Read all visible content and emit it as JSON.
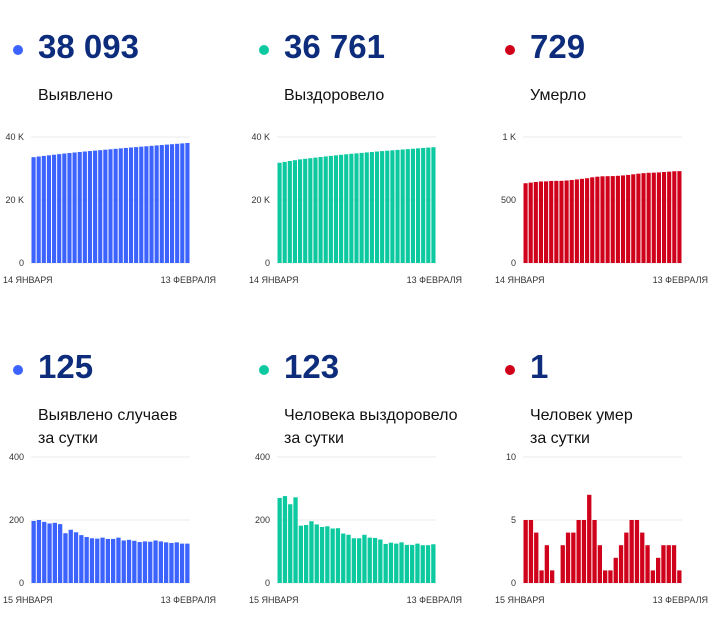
{
  "colors": {
    "blue": "#3d63ff",
    "teal": "#0cc9a0",
    "red": "#d0021b"
  },
  "stats": [
    {
      "value": "38 093",
      "label1": "Выявлено",
      "label2": "",
      "color": "#3d63ff"
    },
    {
      "value": "36 761",
      "label1": "Выздоровело",
      "label2": "",
      "color": "#0cc9a0"
    },
    {
      "value": "729",
      "label1": "Умерло",
      "label2": "",
      "color": "#d0021b"
    },
    {
      "value": "125",
      "label1": "Выявлено случаев",
      "label2": "за сутки",
      "color": "#3d63ff"
    },
    {
      "value": "123",
      "label1": "Человека выздоровело",
      "label2": "за сутки",
      "color": "#0cc9a0"
    },
    {
      "value": "1",
      "label1": "Человек умер",
      "label2": "за сутки",
      "color": "#d0021b"
    }
  ],
  "chart_data": [
    {
      "type": "bar",
      "color": "#3d63ff",
      "ylim": [
        0,
        40000
      ],
      "yticks": [
        {
          "v": 0,
          "label": "0"
        },
        {
          "v": 20000,
          "label": "20 K"
        },
        {
          "v": 40000,
          "label": "40 K"
        }
      ],
      "xstart": "14 ЯНВАРЯ",
      "xend": "13 ФЕВРАЛЯ",
      "values": [
        33597,
        33794,
        33994,
        34188,
        34377,
        34568,
        34755,
        34913,
        35082,
        35243,
        35395,
        35541,
        35683,
        35824,
        35968,
        36108,
        36248,
        36392,
        36527,
        36664,
        36798,
        36928,
        37060,
        37191,
        37326,
        37458,
        37587,
        37714,
        37843,
        37968,
        38093
      ]
    },
    {
      "type": "bar",
      "color": "#0cc9a0",
      "ylim": [
        0,
        40000
      ],
      "yticks": [
        {
          "v": 0,
          "label": "0"
        },
        {
          "v": 20000,
          "label": "20 K"
        },
        {
          "v": 40000,
          "label": "40 K"
        }
      ],
      "xstart": "14 ЯНВАРЯ",
      "xend": "13 ФЕВРАЛЯ",
      "values": [
        31832,
        32102,
        32378,
        32628,
        32900,
        33082,
        33266,
        33462,
        33648,
        33826,
        34006,
        34179,
        34353,
        34510,
        34663,
        34805,
        34947,
        35100,
        35244,
        35387,
        35525,
        35649,
        35777,
        35902,
        36031,
        36152,
        36273,
        36398,
        36518,
        36638,
        36761
      ]
    },
    {
      "type": "bar",
      "color": "#d0021b",
      "ylim": [
        0,
        1000
      ],
      "yticks": [
        {
          "v": 0,
          "label": "0"
        },
        {
          "v": 500,
          "label": "500"
        },
        {
          "v": 1000,
          "label": "1 K"
        }
      ],
      "xstart": "14 ЯНВАРЯ",
      "xend": "13 ФЕВРАЛЯ",
      "values": [
        633,
        638,
        643,
        647,
        648,
        651,
        652,
        652,
        655,
        659,
        663,
        668,
        673,
        680,
        685,
        688,
        689,
        690,
        692,
        695,
        699,
        704,
        709,
        713,
        716,
        717,
        719,
        722,
        725,
        728,
        729
      ]
    },
    {
      "type": "bar",
      "color": "#3d63ff",
      "ylim": [
        0,
        400
      ],
      "yticks": [
        {
          "v": 0,
          "label": "0"
        },
        {
          "v": 200,
          "label": "200"
        },
        {
          "v": 400,
          "label": "400"
        }
      ],
      "xstart": "15 ЯНВАРЯ",
      "xend": "13 ФЕВРАЛЯ",
      "values": [
        197,
        200,
        194,
        189,
        191,
        187,
        158,
        169,
        161,
        152,
        146,
        142,
        141,
        144,
        140,
        140,
        144,
        135,
        137,
        134,
        130,
        132,
        131,
        135,
        132,
        129,
        127,
        129,
        125,
        125
      ]
    },
    {
      "type": "bar",
      "color": "#0cc9a0",
      "ylim": [
        0,
        400
      ],
      "yticks": [
        {
          "v": 0,
          "label": "0"
        },
        {
          "v": 200,
          "label": "200"
        },
        {
          "v": 400,
          "label": "400"
        }
      ],
      "xstart": "15 ЯНВАРЯ",
      "xend": "13 ФЕВРАЛЯ",
      "values": [
        270,
        276,
        250,
        272,
        182,
        184,
        196,
        186,
        178,
        180,
        173,
        174,
        157,
        153,
        142,
        142,
        153,
        144,
        143,
        138,
        124,
        128,
        125,
        129,
        121,
        121,
        125,
        120,
        120,
        123
      ]
    },
    {
      "type": "bar",
      "color": "#d0021b",
      "ylim": [
        0,
        10
      ],
      "yticks": [
        {
          "v": 0,
          "label": "0"
        },
        {
          "v": 5,
          "label": "5"
        },
        {
          "v": 10,
          "label": "10"
        }
      ],
      "xstart": "15 ЯНВАРЯ",
      "xend": "13 ФЕВРАЛЯ",
      "values": [
        5,
        5,
        4,
        1,
        3,
        1,
        0,
        3,
        4,
        4,
        5,
        5,
        7,
        5,
        3,
        1,
        1,
        2,
        3,
        4,
        5,
        5,
        4,
        3,
        1,
        2,
        3,
        3,
        3,
        1
      ]
    }
  ]
}
